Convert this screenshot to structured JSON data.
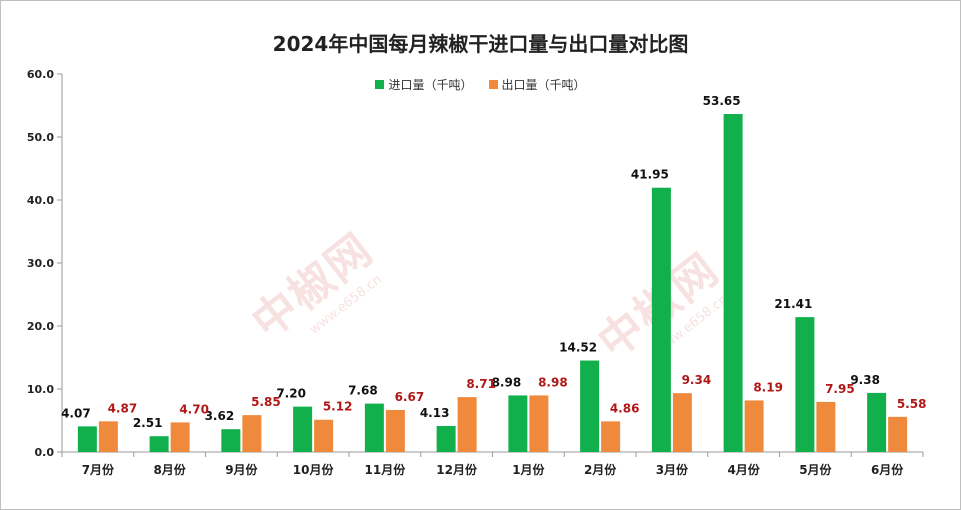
{
  "chart_data": {
    "type": "bar",
    "title": "2024年中国每月辣椒干进口量与出口量对比图",
    "categories": [
      "7月份",
      "8月份",
      "9月份",
      "10月份",
      "11月份",
      "12月份",
      "1月份",
      "2月份",
      "3月份",
      "4月份",
      "5月份",
      "6月份"
    ],
    "series": [
      {
        "name": "进口量（千吨）",
        "color": "#12b04c",
        "label_color": "#111111",
        "values": [
          4.07,
          2.51,
          3.62,
          7.2,
          7.68,
          4.13,
          8.98,
          14.52,
          41.95,
          53.65,
          21.41,
          9.38
        ]
      },
      {
        "name": "出口量（千吨）",
        "color": "#ef8a3c",
        "label_color": "#b01818",
        "values": [
          4.87,
          4.7,
          5.85,
          5.12,
          6.67,
          8.71,
          8.98,
          4.86,
          9.34,
          8.19,
          7.95,
          5.58
        ]
      }
    ],
    "ylim": [
      0,
      60
    ],
    "yticks": [
      "0.0",
      "10.0",
      "20.0",
      "30.0",
      "40.0",
      "50.0",
      "60.0"
    ],
    "legend_position": "top-center",
    "grid": false
  },
  "watermark": {
    "text": "中椒网",
    "url": "www.e658.cn"
  }
}
